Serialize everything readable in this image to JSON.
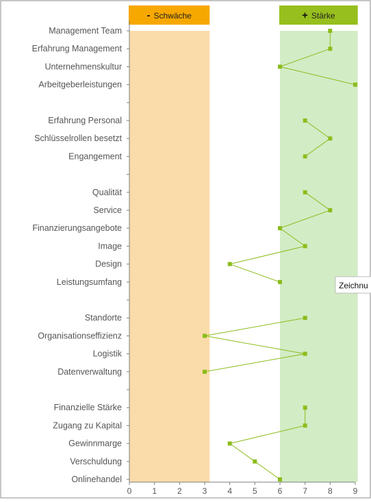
{
  "chart_data": {
    "type": "line",
    "orientation": "horizontal",
    "categories": [
      "Management Team",
      "Erfahrung Management ",
      "Unternehmenskultur",
      "Arbeitgeberleistungen",
      "",
      "Erfahrung Personal",
      "Schlüsselrollen besetzt",
      "Engangement",
      "",
      "Qualität",
      "Service",
      "Finanzierungsangebote",
      "Image",
      "Design",
      "Leistungsumfang",
      "",
      "Standorte",
      "Organisationseffizienz",
      "Logistik",
      "Datenverwaltung",
      "",
      "Finanzielle Stärke",
      "Zugang zu Kapital",
      "Gewinnmarge",
      "Verschuldung",
      "Onlinehandel"
    ],
    "values": [
      8,
      8,
      6,
      9,
      null,
      7,
      8,
      7,
      null,
      7,
      8,
      6,
      7,
      4,
      6,
      null,
      7,
      3,
      7,
      3,
      null,
      7,
      7,
      4,
      5,
      6
    ],
    "segment_breaks": [
      4,
      8,
      15,
      20
    ],
    "xlim": [
      0,
      9
    ],
    "xticks": [
      "0",
      "1",
      "2",
      "3",
      "4",
      "5",
      "6",
      "7",
      "8",
      "9"
    ],
    "bands": [
      {
        "label": "Schwäche",
        "sign": "-",
        "range": [
          0,
          3.2
        ],
        "band_color": "#fadcaa",
        "header_color": "#f7a800"
      },
      {
        "label": "Stärke",
        "sign": "+",
        "range": [
          6,
          9.1
        ],
        "band_color": "#d2ecc5",
        "header_color": "#97bf1d"
      }
    ],
    "line_color": "#8cbc1c",
    "marker_color": "#8cbc1c",
    "axis_color": "#7f7f7f",
    "frame_color": "#8c8c8c",
    "grid": false,
    "legend": "none",
    "title": "",
    "xlabel": "",
    "ylabel": ""
  },
  "tooltip": {
    "text": "Zeichnu"
  }
}
